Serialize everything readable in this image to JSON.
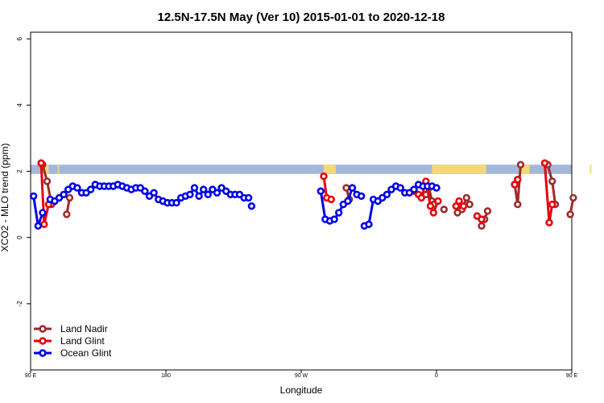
{
  "chart_data": {
    "type": "line",
    "title": "12.5N-17.5N May (Ver 10)   2015-01-01 to 2020-12-18",
    "xlabel": "Longitude",
    "ylabel": "XCO2 - MLO trend (ppm)",
    "xlim": [
      90,
      450
    ],
    "ylim": [
      -4,
      6.2
    ],
    "x_ticks": [
      {
        "value": 90,
        "label": "90 E"
      },
      {
        "value": 180,
        "label": "180"
      },
      {
        "value": 270,
        "label": "90 W"
      },
      {
        "value": 360,
        "label": "0"
      },
      {
        "value": 450,
        "label": "90 E"
      },
      {
        "value": 540,
        "label": "180"
      }
    ],
    "y_ticks": [
      {
        "value": -2,
        "label": "-2"
      },
      {
        "value": 0,
        "label": "0"
      },
      {
        "value": 2,
        "label": "2"
      },
      {
        "value": 4,
        "label": "4"
      },
      {
        "value": 6,
        "label": "6"
      }
    ],
    "grid": false,
    "legend_position": "bottom-left",
    "land_band": {
      "y_min": 1.92,
      "y_max": 2.2,
      "ocean_color": "#a3b8d9",
      "land_color": "#f5d77a"
    },
    "series": [
      {
        "name": "Land Nadir",
        "color": "#9e2b2b",
        "segments": [
          [
            [
              98,
              2.2
            ],
            [
              101,
              1.7
            ],
            [
              104,
              1.0
            ]
          ],
          [
            [
              114,
              0.7
            ],
            [
              116,
              1.2
            ]
          ],
          [
            [
              300,
              1.5
            ],
            [
              302,
              1.15
            ]
          ],
          [
            [
              353,
              1.3
            ],
            [
              355,
              1.5
            ],
            [
              357,
              1.1
            ]
          ],
          [
            [
              358,
              1.0
            ]
          ],
          [
            [
              365,
              0.85
            ]
          ],
          [
            [
              374,
              0.75
            ],
            [
              377,
              0.85
            ],
            [
              380,
              1.2
            ],
            [
              382,
              1.0
            ]
          ],
          [
            [
              390,
              0.35
            ],
            [
              392,
              0.55
            ],
            [
              394,
              0.8
            ]
          ],
          [
            [
              412,
              1.6
            ],
            [
              414,
              1.0
            ],
            [
              416,
              2.2
            ]
          ],
          [
            [
              434,
              2.2
            ],
            [
              437,
              1.7
            ],
            [
              439,
              1.0
            ]
          ],
          [
            [
              449,
              0.7
            ],
            [
              451,
              1.2
            ]
          ]
        ]
      },
      {
        "name": "Land Glint",
        "color": "#e8000b",
        "segments": [
          [
            [
              97,
              2.25
            ],
            [
              99,
              0.4
            ],
            [
              102,
              1.0
            ]
          ],
          [
            [
              285,
              1.85
            ],
            [
              287,
              1.2
            ],
            [
              290,
              1.15
            ]
          ],
          [
            [
              345,
              1.4
            ],
            [
              348,
              1.3
            ],
            [
              350,
              1.2
            ],
            [
              353,
              1.7
            ],
            [
              356,
              0.95
            ],
            [
              358,
              0.75
            ],
            [
              361,
              1.1
            ]
          ],
          [
            [
              373,
              0.95
            ],
            [
              375,
              1.1
            ],
            [
              378,
              0.95
            ]
          ],
          [
            [
              387,
              0.65
            ],
            [
              390,
              0.55
            ]
          ],
          [
            [
              412,
              1.6
            ],
            [
              414,
              1.75
            ]
          ],
          [
            [
              432,
              2.25
            ],
            [
              435,
              0.45
            ],
            [
              437,
              1.0
            ]
          ]
        ]
      },
      {
        "name": "Ocean Glint",
        "color": "#0000e6",
        "segments": [
          [
            [
              92,
              1.25
            ],
            [
              95,
              0.35
            ],
            [
              98,
              0.75
            ]
          ],
          [
            [
              103,
              1.15
            ],
            [
              106,
              1.1
            ],
            [
              109,
              1.2
            ],
            [
              112,
              1.3
            ],
            [
              115,
              1.45
            ],
            [
              118,
              1.55
            ],
            [
              121,
              1.5
            ],
            [
              124,
              1.35
            ],
            [
              127,
              1.35
            ],
            [
              130,
              1.45
            ],
            [
              133,
              1.6
            ],
            [
              136,
              1.55
            ],
            [
              139,
              1.55
            ],
            [
              142,
              1.55
            ],
            [
              145,
              1.55
            ],
            [
              148,
              1.6
            ],
            [
              151,
              1.55
            ],
            [
              154,
              1.5
            ],
            [
              157,
              1.45
            ],
            [
              160,
              1.5
            ],
            [
              163,
              1.5
            ],
            [
              166,
              1.4
            ],
            [
              169,
              1.25
            ],
            [
              172,
              1.35
            ],
            [
              175,
              1.15
            ],
            [
              178,
              1.1
            ],
            [
              181,
              1.05
            ],
            [
              184,
              1.05
            ],
            [
              187,
              1.05
            ],
            [
              190,
              1.2
            ],
            [
              193,
              1.25
            ],
            [
              196,
              1.3
            ],
            [
              199,
              1.5
            ],
            [
              202,
              1.25
            ],
            [
              205,
              1.45
            ],
            [
              208,
              1.3
            ],
            [
              211,
              1.45
            ],
            [
              214,
              1.35
            ],
            [
              217,
              1.5
            ],
            [
              220,
              1.4
            ],
            [
              223,
              1.3
            ],
            [
              226,
              1.3
            ],
            [
              229,
              1.3
            ],
            [
              232,
              1.2
            ],
            [
              235,
              1.2
            ]
          ],
          [
            [
              237,
              0.95
            ]
          ],
          [
            [
              283,
              1.4
            ],
            [
              286,
              0.55
            ],
            [
              289,
              0.5
            ],
            [
              292,
              0.55
            ],
            [
              295,
              0.75
            ],
            [
              298,
              1.0
            ],
            [
              301,
              1.1
            ],
            [
              304,
              1.5
            ],
            [
              307,
              1.3
            ],
            [
              310,
              1.25
            ]
          ],
          [
            [
              312,
              0.35
            ],
            [
              315,
              0.4
            ],
            [
              318,
              1.15
            ],
            [
              321,
              1.1
            ],
            [
              324,
              1.2
            ],
            [
              327,
              1.3
            ],
            [
              330,
              1.45
            ],
            [
              333,
              1.55
            ],
            [
              336,
              1.5
            ],
            [
              339,
              1.35
            ],
            [
              342,
              1.35
            ],
            [
              345,
              1.45
            ],
            [
              348,
              1.6
            ],
            [
              351,
              1.55
            ],
            [
              354,
              1.55
            ],
            [
              357,
              1.55
            ],
            [
              360,
              1.5
            ]
          ]
        ]
      }
    ]
  }
}
